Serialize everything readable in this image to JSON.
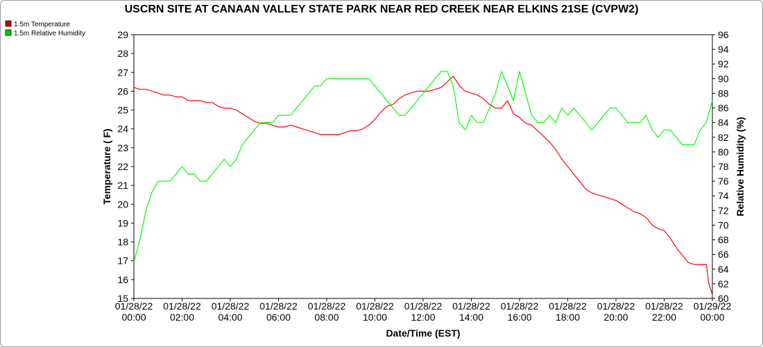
{
  "chart_data": {
    "type": "line",
    "title": "USCRN SITE AT CANAAN VALLEY STATE PARK NEAR RED CREEK NEAR ELKINS 21SE (CVPW2)",
    "xlabel": "Date/Time (EST)",
    "ylabel": "Temperature ( F)",
    "y2label": "Relative Humidity (%)",
    "ylim": [
      15,
      29
    ],
    "y2lim": [
      60,
      96
    ],
    "xlim": [
      0,
      24
    ],
    "grid": false,
    "legend": "top-left",
    "x_ticks": [
      {
        "x": 0,
        "line1": "01/28/22",
        "line2": "00:00"
      },
      {
        "x": 2,
        "line1": "01/28/22",
        "line2": "02:00"
      },
      {
        "x": 4,
        "line1": "01/28/22",
        "line2": "04:00"
      },
      {
        "x": 6,
        "line1": "01/28/22",
        "line2": "06:00"
      },
      {
        "x": 8,
        "line1": "01/28/22",
        "line2": "08:00"
      },
      {
        "x": 10,
        "line1": "01/28/22",
        "line2": "10:00"
      },
      {
        "x": 12,
        "line1": "01/28/22",
        "line2": "12:00"
      },
      {
        "x": 14,
        "line1": "01/28/22",
        "line2": "14:00"
      },
      {
        "x": 16,
        "line1": "01/28/22",
        "line2": "16:00"
      },
      {
        "x": 18,
        "line1": "01/28/22",
        "line2": "18:00"
      },
      {
        "x": 20,
        "line1": "01/28/22",
        "line2": "20:00"
      },
      {
        "x": 22,
        "line1": "01/28/22",
        "line2": "22:00"
      },
      {
        "x": 24,
        "line1": "01/29/22",
        "line2": "00:00"
      }
    ],
    "y_ticks": [
      15,
      16,
      17,
      18,
      19,
      20,
      21,
      22,
      23,
      24,
      25,
      26,
      27,
      28,
      29
    ],
    "y2_ticks": [
      60,
      62,
      64,
      66,
      68,
      70,
      72,
      74,
      76,
      78,
      80,
      82,
      84,
      86,
      88,
      90,
      92,
      94,
      96
    ],
    "series": [
      {
        "name": "1.5m Temperature",
        "axis": "left",
        "color": "#ff0000",
        "legend_color": "#cc0000",
        "points": [
          [
            0.0,
            26.2
          ],
          [
            0.25,
            26.1
          ],
          [
            0.5,
            26.1
          ],
          [
            0.75,
            26.0
          ],
          [
            1.0,
            25.9
          ],
          [
            1.25,
            25.8
          ],
          [
            1.5,
            25.8
          ],
          [
            1.75,
            25.7
          ],
          [
            2.0,
            25.7
          ],
          [
            2.25,
            25.5
          ],
          [
            2.5,
            25.5
          ],
          [
            2.75,
            25.5
          ],
          [
            3.0,
            25.4
          ],
          [
            3.25,
            25.4
          ],
          [
            3.5,
            25.2
          ],
          [
            3.75,
            25.1
          ],
          [
            4.0,
            25.1
          ],
          [
            4.25,
            25.0
          ],
          [
            4.5,
            24.8
          ],
          [
            4.75,
            24.6
          ],
          [
            5.0,
            24.4
          ],
          [
            5.25,
            24.3
          ],
          [
            5.5,
            24.3
          ],
          [
            5.75,
            24.2
          ],
          [
            6.0,
            24.1
          ],
          [
            6.25,
            24.1
          ],
          [
            6.5,
            24.2
          ],
          [
            6.75,
            24.1
          ],
          [
            7.0,
            24.0
          ],
          [
            7.25,
            23.9
          ],
          [
            7.5,
            23.8
          ],
          [
            7.75,
            23.7
          ],
          [
            8.0,
            23.7
          ],
          [
            8.25,
            23.7
          ],
          [
            8.5,
            23.7
          ],
          [
            8.75,
            23.8
          ],
          [
            9.0,
            23.9
          ],
          [
            9.25,
            23.9
          ],
          [
            9.5,
            24.0
          ],
          [
            9.75,
            24.2
          ],
          [
            10.0,
            24.5
          ],
          [
            10.25,
            24.9
          ],
          [
            10.5,
            25.2
          ],
          [
            10.75,
            25.3
          ],
          [
            11.0,
            25.6
          ],
          [
            11.25,
            25.8
          ],
          [
            11.5,
            25.9
          ],
          [
            11.75,
            26.0
          ],
          [
            12.0,
            26.0
          ],
          [
            12.25,
            26.0
          ],
          [
            12.5,
            26.1
          ],
          [
            12.75,
            26.2
          ],
          [
            13.0,
            26.5
          ],
          [
            13.25,
            26.8
          ],
          [
            13.5,
            26.3
          ],
          [
            13.75,
            26.0
          ],
          [
            14.0,
            25.9
          ],
          [
            14.25,
            25.8
          ],
          [
            14.5,
            25.6
          ],
          [
            14.75,
            25.3
          ],
          [
            15.0,
            25.1
          ],
          [
            15.25,
            25.1
          ],
          [
            15.5,
            25.5
          ],
          [
            15.75,
            24.8
          ],
          [
            16.0,
            24.6
          ],
          [
            16.25,
            24.3
          ],
          [
            16.5,
            24.2
          ],
          [
            16.75,
            23.9
          ],
          [
            17.0,
            23.6
          ],
          [
            17.25,
            23.3
          ],
          [
            17.5,
            22.9
          ],
          [
            17.75,
            22.4
          ],
          [
            18.0,
            22.0
          ],
          [
            18.25,
            21.6
          ],
          [
            18.5,
            21.2
          ],
          [
            18.75,
            20.8
          ],
          [
            19.0,
            20.6
          ],
          [
            19.25,
            20.5
          ],
          [
            19.5,
            20.4
          ],
          [
            19.75,
            20.3
          ],
          [
            20.0,
            20.2
          ],
          [
            20.25,
            20.0
          ],
          [
            20.5,
            19.8
          ],
          [
            20.75,
            19.6
          ],
          [
            21.0,
            19.5
          ],
          [
            21.25,
            19.3
          ],
          [
            21.5,
            18.9
          ],
          [
            21.75,
            18.7
          ],
          [
            22.0,
            18.6
          ],
          [
            22.25,
            18.2
          ],
          [
            22.5,
            17.7
          ],
          [
            22.75,
            17.3
          ],
          [
            23.0,
            16.9
          ],
          [
            23.25,
            16.8
          ],
          [
            23.5,
            16.8
          ],
          [
            23.75,
            16.8
          ],
          [
            23.85,
            15.8
          ],
          [
            24.0,
            15.2
          ]
        ]
      },
      {
        "name": "1.5m Relative Humidity",
        "axis": "right",
        "color": "#00ff00",
        "legend_color": "#00cc00",
        "points": [
          [
            0.0,
            65.0
          ],
          [
            0.25,
            68.0
          ],
          [
            0.5,
            72.0
          ],
          [
            0.75,
            74.5
          ],
          [
            1.0,
            76.0
          ],
          [
            1.25,
            76.0
          ],
          [
            1.5,
            76.0
          ],
          [
            1.75,
            77.0
          ],
          [
            2.0,
            78.0
          ],
          [
            2.25,
            77.0
          ],
          [
            2.5,
            77.0
          ],
          [
            2.75,
            76.0
          ],
          [
            3.0,
            76.0
          ],
          [
            3.25,
            77.0
          ],
          [
            3.5,
            78.0
          ],
          [
            3.75,
            79.0
          ],
          [
            4.0,
            78.0
          ],
          [
            4.25,
            79.0
          ],
          [
            4.5,
            81.0
          ],
          [
            4.75,
            82.0
          ],
          [
            5.0,
            83.0
          ],
          [
            5.25,
            84.0
          ],
          [
            5.5,
            84.0
          ],
          [
            5.75,
            84.0
          ],
          [
            6.0,
            85.0
          ],
          [
            6.25,
            85.0
          ],
          [
            6.5,
            85.0
          ],
          [
            6.75,
            86.0
          ],
          [
            7.0,
            87.0
          ],
          [
            7.25,
            88.0
          ],
          [
            7.5,
            89.0
          ],
          [
            7.75,
            89.0
          ],
          [
            8.0,
            90.0
          ],
          [
            8.25,
            90.0
          ],
          [
            8.5,
            90.0
          ],
          [
            8.75,
            90.0
          ],
          [
            9.0,
            90.0
          ],
          [
            9.25,
            90.0
          ],
          [
            9.5,
            90.0
          ],
          [
            9.75,
            90.0
          ],
          [
            10.0,
            89.0
          ],
          [
            10.25,
            88.0
          ],
          [
            10.5,
            87.0
          ],
          [
            10.75,
            86.0
          ],
          [
            11.0,
            85.0
          ],
          [
            11.25,
            85.0
          ],
          [
            11.5,
            86.0
          ],
          [
            11.75,
            87.0
          ],
          [
            12.0,
            88.0
          ],
          [
            12.25,
            89.0
          ],
          [
            12.5,
            90.0
          ],
          [
            12.75,
            91.0
          ],
          [
            13.0,
            91.0
          ],
          [
            13.25,
            89.0
          ],
          [
            13.5,
            84.0
          ],
          [
            13.75,
            83.0
          ],
          [
            14.0,
            85.0
          ],
          [
            14.25,
            84.0
          ],
          [
            14.5,
            84.0
          ],
          [
            14.75,
            86.0
          ],
          [
            15.0,
            88.0
          ],
          [
            15.25,
            91.0
          ],
          [
            15.5,
            89.0
          ],
          [
            15.75,
            87.0
          ],
          [
            16.0,
            91.0
          ],
          [
            16.25,
            88.0
          ],
          [
            16.5,
            85.0
          ],
          [
            16.75,
            84.0
          ],
          [
            17.0,
            84.0
          ],
          [
            17.25,
            85.0
          ],
          [
            17.5,
            84.0
          ],
          [
            17.75,
            86.0
          ],
          [
            18.0,
            85.0
          ],
          [
            18.25,
            86.0
          ],
          [
            18.5,
            85.0
          ],
          [
            18.75,
            84.0
          ],
          [
            19.0,
            83.0
          ],
          [
            19.25,
            84.0
          ],
          [
            19.5,
            85.0
          ],
          [
            19.75,
            86.0
          ],
          [
            20.0,
            86.0
          ],
          [
            20.25,
            85.0
          ],
          [
            20.5,
            84.0
          ],
          [
            20.75,
            84.0
          ],
          [
            21.0,
            84.0
          ],
          [
            21.25,
            85.0
          ],
          [
            21.5,
            83.0
          ],
          [
            21.75,
            82.0
          ],
          [
            22.0,
            83.0
          ],
          [
            22.25,
            83.0
          ],
          [
            22.5,
            82.0
          ],
          [
            22.75,
            81.0
          ],
          [
            23.0,
            81.0
          ],
          [
            23.25,
            81.0
          ],
          [
            23.5,
            83.0
          ],
          [
            23.75,
            84.0
          ],
          [
            24.0,
            87.0
          ]
        ]
      }
    ]
  }
}
